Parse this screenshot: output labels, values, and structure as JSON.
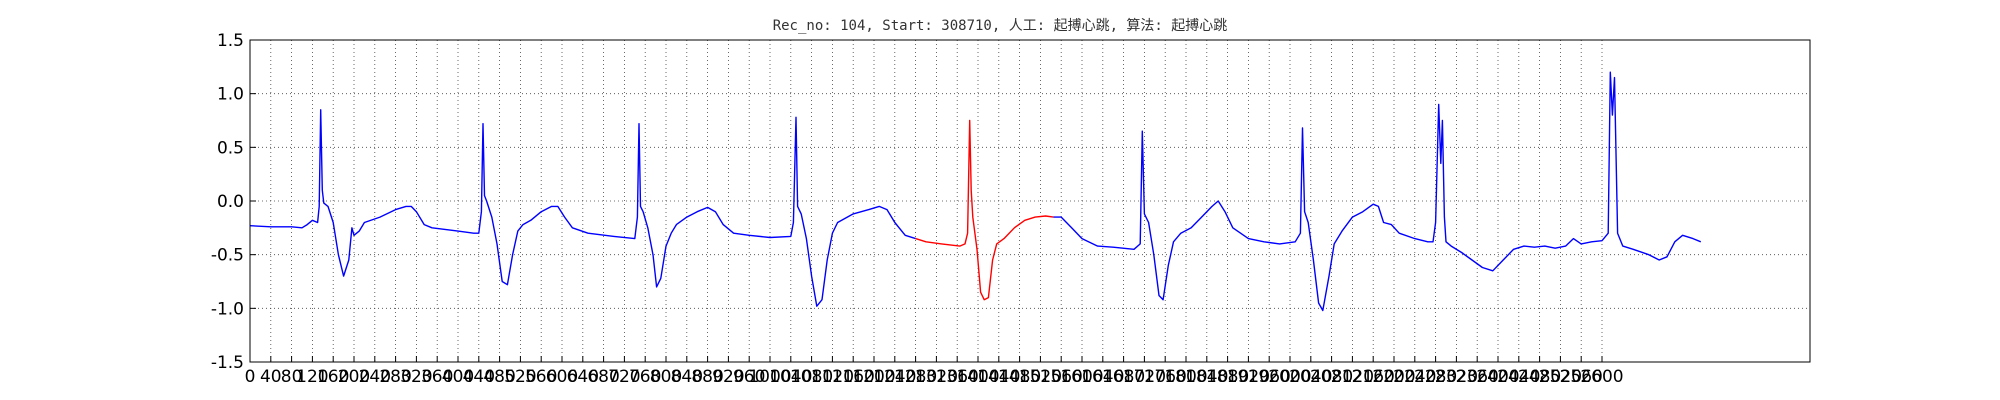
{
  "chart_data": {
    "type": "line",
    "title": "Rec_no: 104, Start: 308710, 人工: 起搏心跳, 算法: 起搏心跳",
    "xlabel": "",
    "ylabel": "",
    "xlim": [
      0,
      3000
    ],
    "ylim": [
      -1.5,
      1.5
    ],
    "grid": true,
    "xticks": [
      0,
      40,
      80,
      120,
      160,
      200,
      240,
      280,
      320,
      360,
      400,
      440,
      480,
      520,
      560,
      600,
      640,
      680,
      720,
      760,
      800,
      840,
      880,
      920,
      960,
      1000,
      1040,
      1080,
      1120,
      1160,
      1200,
      1240,
      1280,
      1320,
      1360,
      1400,
      1440,
      1480,
      1520,
      1560,
      1600,
      1640,
      1680,
      1720,
      1760,
      1800,
      1840,
      1880,
      1920,
      1960,
      2000,
      2040,
      2080,
      2120,
      2160,
      2200,
      2240,
      2280,
      2320,
      2360,
      2400,
      2440,
      2480,
      2520,
      2560,
      2600
    ],
    "yticks": [
      "-1.5",
      "-1.0",
      "-0.5",
      "0.0",
      "0.5",
      "1.0",
      "1.5"
    ],
    "series": [
      {
        "color": "#0000ff",
        "points": [
          [
            0,
            -0.23
          ],
          [
            40,
            -0.24
          ],
          [
            80,
            -0.24
          ],
          [
            100,
            -0.25
          ],
          [
            110,
            -0.22
          ],
          [
            120,
            -0.18
          ],
          [
            130,
            -0.2
          ],
          [
            133,
            -0.05
          ],
          [
            136,
            0.85
          ],
          [
            139,
            0.1
          ],
          [
            142,
            -0.02
          ],
          [
            150,
            -0.05
          ],
          [
            160,
            -0.2
          ],
          [
            170,
            -0.5
          ],
          [
            180,
            -0.7
          ],
          [
            190,
            -0.55
          ],
          [
            196,
            -0.25
          ],
          [
            200,
            -0.32
          ],
          [
            210,
            -0.28
          ],
          [
            220,
            -0.2
          ],
          [
            250,
            -0.15
          ],
          [
            280,
            -0.08
          ],
          [
            300,
            -0.05
          ],
          [
            310,
            -0.05
          ],
          [
            320,
            -0.1
          ],
          [
            335,
            -0.22
          ],
          [
            350,
            -0.25
          ],
          [
            400,
            -0.28
          ],
          [
            430,
            -0.3
          ],
          [
            440,
            -0.3
          ],
          [
            445,
            -0.1
          ],
          [
            448,
            0.72
          ],
          [
            451,
            0.05
          ],
          [
            455,
            0.0
          ],
          [
            465,
            -0.15
          ],
          [
            475,
            -0.4
          ],
          [
            485,
            -0.75
          ],
          [
            495,
            -0.78
          ],
          [
            505,
            -0.5
          ],
          [
            515,
            -0.28
          ],
          [
            525,
            -0.22
          ],
          [
            540,
            -0.18
          ],
          [
            560,
            -0.1
          ],
          [
            580,
            -0.05
          ],
          [
            592,
            -0.05
          ],
          [
            605,
            -0.15
          ],
          [
            620,
            -0.25
          ],
          [
            650,
            -0.3
          ],
          [
            700,
            -0.33
          ],
          [
            740,
            -0.35
          ],
          [
            745,
            -0.15
          ],
          [
            748,
            0.72
          ],
          [
            751,
            -0.05
          ],
          [
            756,
            -0.1
          ],
          [
            765,
            -0.25
          ],
          [
            775,
            -0.5
          ],
          [
            782,
            -0.8
          ],
          [
            790,
            -0.72
          ],
          [
            800,
            -0.42
          ],
          [
            810,
            -0.3
          ],
          [
            820,
            -0.22
          ],
          [
            840,
            -0.15
          ],
          [
            860,
            -0.1
          ],
          [
            880,
            -0.06
          ],
          [
            895,
            -0.1
          ],
          [
            910,
            -0.22
          ],
          [
            930,
            -0.3
          ],
          [
            960,
            -0.32
          ],
          [
            1000,
            -0.34
          ],
          [
            1040,
            -0.33
          ],
          [
            1045,
            -0.2
          ],
          [
            1050,
            0.78
          ],
          [
            1053,
            -0.05
          ],
          [
            1060,
            -0.12
          ],
          [
            1070,
            -0.35
          ],
          [
            1080,
            -0.7
          ],
          [
            1090,
            -0.98
          ],
          [
            1100,
            -0.92
          ],
          [
            1110,
            -0.55
          ],
          [
            1120,
            -0.3
          ],
          [
            1130,
            -0.2
          ],
          [
            1160,
            -0.12
          ],
          [
            1190,
            -0.08
          ],
          [
            1210,
            -0.05
          ],
          [
            1225,
            -0.08
          ],
          [
            1240,
            -0.2
          ],
          [
            1260,
            -0.32
          ],
          [
            1280,
            -0.35
          ]
        ]
      },
      {
        "color": "#ff0000",
        "points": [
          [
            1280,
            -0.35
          ],
          [
            1300,
            -0.38
          ],
          [
            1330,
            -0.4
          ],
          [
            1365,
            -0.42
          ],
          [
            1375,
            -0.4
          ],
          [
            1380,
            -0.3
          ],
          [
            1384,
            0.75
          ],
          [
            1387,
            0.1
          ],
          [
            1390,
            -0.15
          ],
          [
            1398,
            -0.45
          ],
          [
            1405,
            -0.85
          ],
          [
            1412,
            -0.92
          ],
          [
            1420,
            -0.9
          ],
          [
            1428,
            -0.55
          ],
          [
            1436,
            -0.4
          ],
          [
            1450,
            -0.35
          ],
          [
            1470,
            -0.25
          ],
          [
            1490,
            -0.18
          ],
          [
            1510,
            -0.15
          ],
          [
            1530,
            -0.14
          ],
          [
            1545,
            -0.15
          ]
        ]
      },
      {
        "color": "#0000ff",
        "points": [
          [
            1545,
            -0.15
          ],
          [
            1560,
            -0.15
          ],
          [
            1580,
            -0.25
          ],
          [
            1600,
            -0.35
          ],
          [
            1630,
            -0.42
          ],
          [
            1660,
            -0.43
          ],
          [
            1700,
            -0.45
          ],
          [
            1712,
            -0.4
          ],
          [
            1716,
            0.65
          ],
          [
            1720,
            -0.12
          ],
          [
            1728,
            -0.2
          ],
          [
            1738,
            -0.5
          ],
          [
            1748,
            -0.88
          ],
          [
            1756,
            -0.92
          ],
          [
            1766,
            -0.6
          ],
          [
            1776,
            -0.38
          ],
          [
            1790,
            -0.3
          ],
          [
            1810,
            -0.25
          ],
          [
            1830,
            -0.15
          ],
          [
            1850,
            -0.05
          ],
          [
            1862,
            0.0
          ],
          [
            1875,
            -0.1
          ],
          [
            1890,
            -0.25
          ],
          [
            1920,
            -0.35
          ],
          [
            1950,
            -0.38
          ],
          [
            1980,
            -0.4
          ],
          [
            2010,
            -0.38
          ],
          [
            2020,
            -0.3
          ],
          [
            2024,
            0.68
          ],
          [
            2028,
            -0.1
          ],
          [
            2035,
            -0.2
          ],
          [
            2045,
            -0.55
          ],
          [
            2055,
            -0.95
          ],
          [
            2063,
            -1.02
          ],
          [
            2075,
            -0.7
          ],
          [
            2085,
            -0.4
          ],
          [
            2100,
            -0.28
          ],
          [
            2120,
            -0.15
          ],
          [
            2140,
            -0.1
          ],
          [
            2160,
            -0.03
          ],
          [
            2170,
            -0.05
          ],
          [
            2180,
            -0.2
          ],
          [
            2195,
            -0.22
          ],
          [
            2210,
            -0.3
          ],
          [
            2240,
            -0.35
          ],
          [
            2265,
            -0.38
          ],
          [
            2275,
            -0.38
          ],
          [
            2280,
            -0.2
          ],
          [
            2286,
            0.9
          ],
          [
            2290,
            0.35
          ],
          [
            2293,
            0.75
          ],
          [
            2297,
            -0.15
          ],
          [
            2300,
            -0.38
          ],
          [
            2310,
            -0.42
          ],
          [
            2330,
            -0.48
          ],
          [
            2350,
            -0.55
          ],
          [
            2370,
            -0.62
          ],
          [
            2390,
            -0.65
          ],
          [
            2410,
            -0.55
          ],
          [
            2430,
            -0.45
          ],
          [
            2450,
            -0.42
          ],
          [
            2470,
            -0.43
          ],
          [
            2490,
            -0.42
          ],
          [
            2510,
            -0.44
          ],
          [
            2530,
            -0.42
          ],
          [
            2545,
            -0.35
          ],
          [
            2560,
            -0.4
          ],
          [
            2580,
            -0.38
          ],
          [
            2600,
            -0.37
          ],
          [
            2612,
            -0.3
          ],
          [
            2616,
            1.2
          ],
          [
            2620,
            0.8
          ],
          [
            2624,
            1.15
          ],
          [
            2630,
            -0.3
          ],
          [
            2640,
            -0.42
          ],
          [
            2660,
            -0.45
          ],
          [
            2690,
            -0.5
          ],
          [
            2710,
            -0.55
          ],
          [
            2725,
            -0.52
          ],
          [
            2740,
            -0.38
          ],
          [
            2755,
            -0.32
          ],
          [
            2775,
            -0.35
          ],
          [
            2790,
            -0.38
          ]
        ]
      }
    ]
  }
}
